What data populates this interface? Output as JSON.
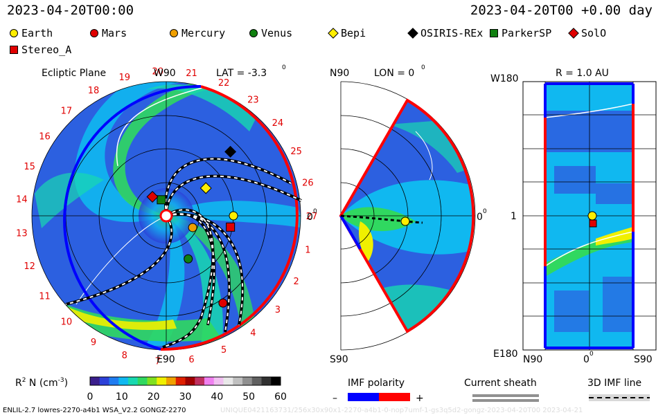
{
  "header": {
    "datetime_left": "2023-04-20T00:00",
    "datetime_right": "2023-04-20T00 +0.00 day"
  },
  "legend": [
    {
      "label": "Earth",
      "shape": "circle",
      "color": "#ffee00"
    },
    {
      "label": "Mars",
      "shape": "circle",
      "color": "#e00000"
    },
    {
      "label": "Mercury",
      "shape": "circle",
      "color": "#f0a000"
    },
    {
      "label": "Venus",
      "shape": "circle",
      "color": "#108010"
    },
    {
      "label": "Bepi",
      "shape": "diamond",
      "color": "#ffee00"
    },
    {
      "label": "OSIRIS-REx",
      "shape": "diamond",
      "color": "#000000"
    },
    {
      "label": "ParkerSP",
      "shape": "square",
      "color": "#108010"
    },
    {
      "label": "SolO",
      "shape": "diamond",
      "color": "#e00000"
    },
    {
      "label": "Stereo_A",
      "shape": "square",
      "color": "#e00000"
    }
  ],
  "panels": {
    "ecliptic": {
      "title": "Ecliptic Plane",
      "top_label": "W90",
      "lat_label": "LAT = -3.3",
      "lat_deg": "0",
      "bottom_label": "E90",
      "right_label": "0",
      "right_deg": "0",
      "sector_numbers": [
        "27",
        "1",
        "2",
        "3",
        "4",
        "5",
        "6",
        "7",
        "8",
        "9",
        "10",
        "11",
        "12",
        "13",
        "14",
        "15",
        "16",
        "17",
        "18",
        "19",
        "20",
        "21",
        "22",
        "23",
        "24",
        "25",
        "26"
      ]
    },
    "meridional": {
      "top_label": "N90",
      "lon_label": "LON = 0",
      "lon_deg": "0",
      "bottom_label": "S90",
      "right_label": "0",
      "right_deg": "0"
    },
    "radial": {
      "title": "R = 1.0 AU",
      "top_left": "W180",
      "mid_left": "1",
      "bottom_left": "E180",
      "x_left": "N90",
      "x_mid": "0",
      "x_mid_deg": "0",
      "x_right": "S90"
    }
  },
  "colorbar": {
    "label_main": "R",
    "label_sup": "2",
    "label_rest": " N (cm",
    "label_exp": "-3",
    "label_end": ")",
    "ticks": [
      "0",
      "10",
      "20",
      "30",
      "40",
      "50",
      "60"
    ],
    "colors": [
      "#3a1e8c",
      "#2c40d8",
      "#1f7cf0",
      "#10b8f0",
      "#18d8b0",
      "#30d860",
      "#80e020",
      "#f0f000",
      "#f0a000",
      "#e02000",
      "#a00000",
      "#c03060",
      "#f080f0",
      "#f0c0f0",
      "#e8e8e8",
      "#c0c0c0",
      "#909090",
      "#606060",
      "#303030",
      "#000000"
    ]
  },
  "imf": {
    "title": "IMF polarity",
    "minus": "–",
    "plus": "+",
    "neg_color": "#0000ff",
    "pos_color": "#ff0000"
  },
  "sheath": {
    "title": "Current sheath"
  },
  "imfline": {
    "title": "3D IMF line"
  },
  "footer": {
    "left": "ENLIL-2.7 lowres-2270-a4b1 WSA_V2.2 GONGZ-2270",
    "right": "UNIQUE0421163731/256x30x90x1-2270-a4b1-0-nop7umf-1-gs3q5d2-gongz-2023-04-20T00 2023-04-21"
  },
  "chart_data": {
    "type": "heatmap",
    "title": "",
    "quantity": "R^2 N (cm^-3)",
    "color_scale_range": [
      0,
      60
    ],
    "time": "2023-04-20T00:00",
    "offset": "+0.00 day",
    "ecliptic_bodies": [
      {
        "name": "Earth",
        "angle_deg": 0,
        "r_au": 1.0
      },
      {
        "name": "Stereo_A",
        "angle_deg": -10,
        "r_au": 0.97
      },
      {
        "name": "Mercury",
        "angle_deg": -24,
        "r_au": 0.43
      },
      {
        "name": "Venus",
        "angle_deg": -63,
        "r_au": 0.72
      },
      {
        "name": "Mars",
        "angle_deg": -57,
        "r_au": 1.55
      },
      {
        "name": "Bepi",
        "angle_deg": 35,
        "r_au": 0.72
      },
      {
        "name": "OSIRIS-REx",
        "angle_deg": 45,
        "r_au": 1.35
      },
      {
        "name": "ParkerSP",
        "angle_deg": 107,
        "r_au": 0.25
      },
      {
        "name": "SolO",
        "angle_deg": 126,
        "r_au": 0.35
      }
    ],
    "imf_polarity": {
      "negative": "blue",
      "positive": "red"
    }
  }
}
